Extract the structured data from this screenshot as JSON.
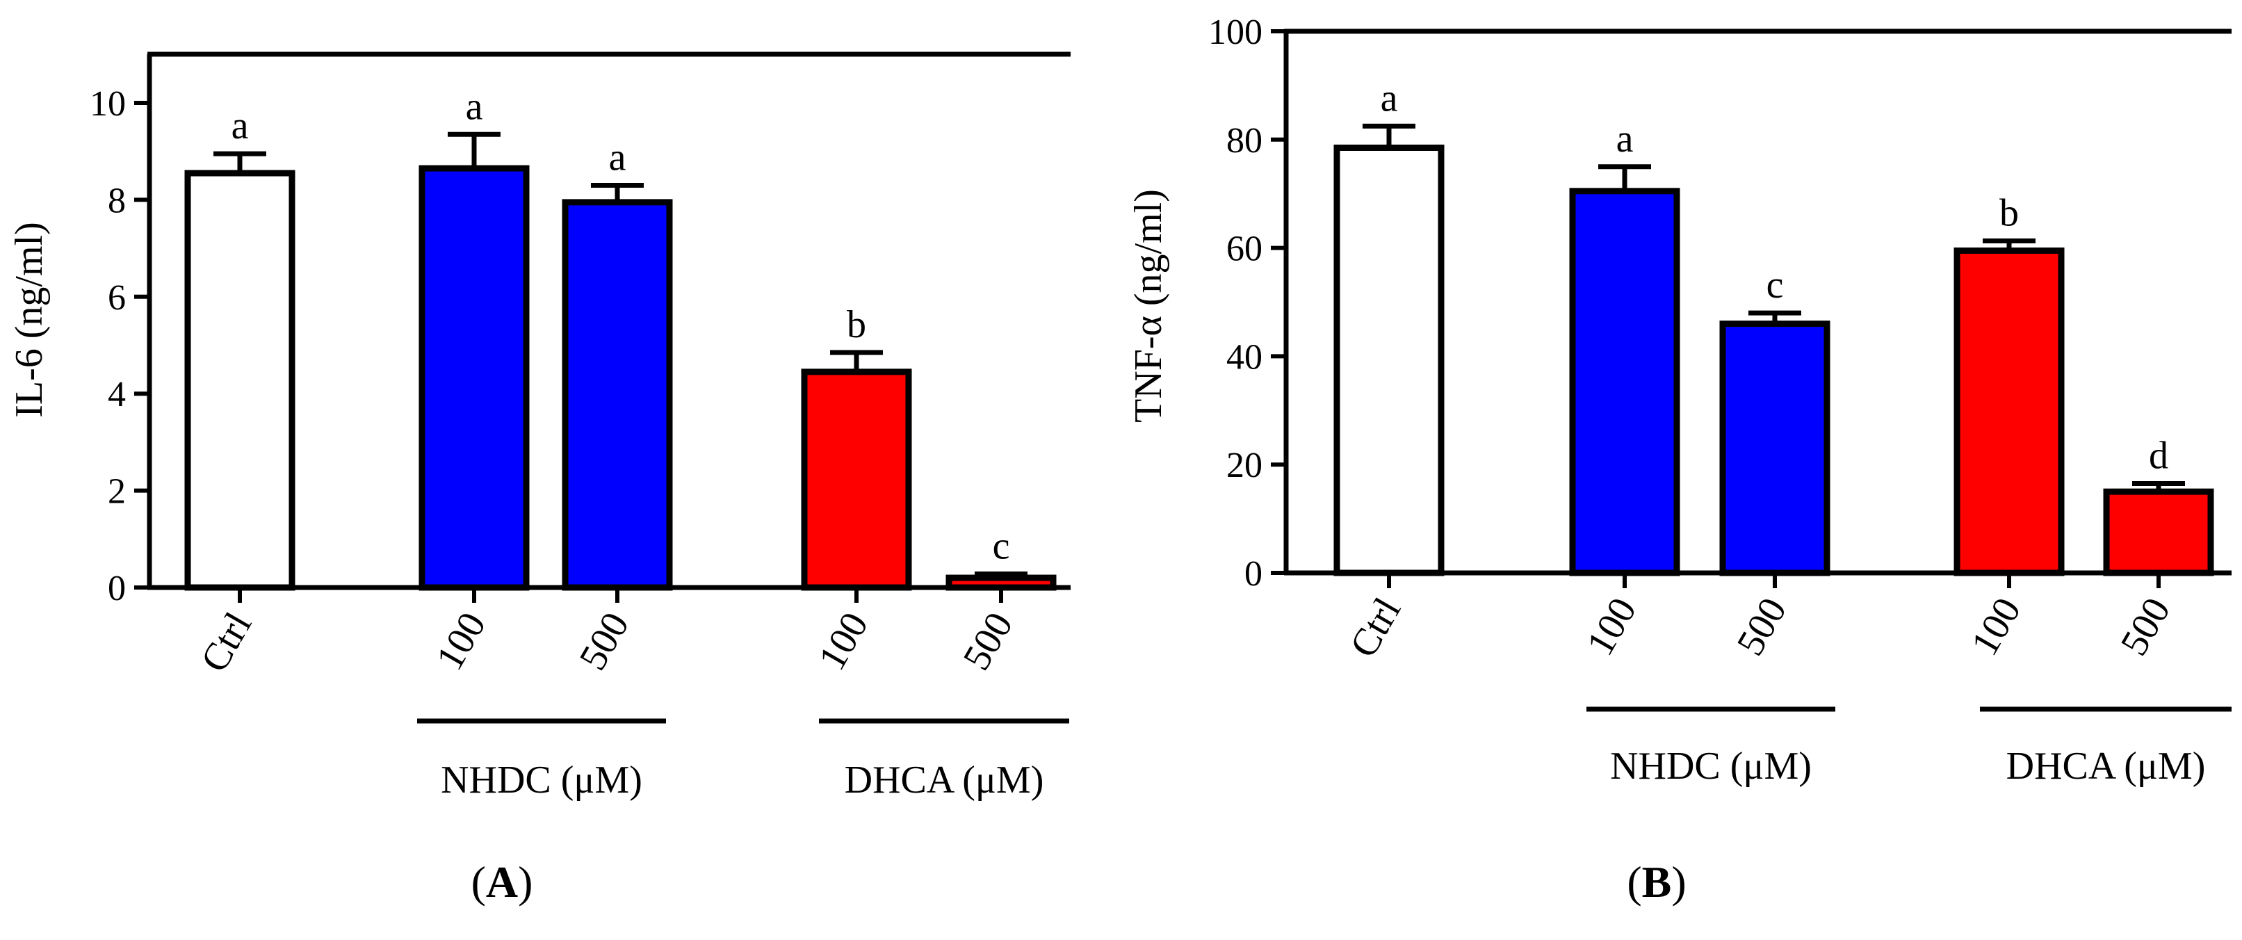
{
  "chart_data": [
    {
      "type": "bar",
      "panel_label": "A",
      "ylabel": "IL-6 (ng/ml)",
      "ylim": [
        0,
        11
      ],
      "yticks": [
        0,
        2,
        4,
        6,
        8,
        10
      ],
      "categories": [
        "Ctrl",
        "100",
        "500",
        "100",
        "500"
      ],
      "values": [
        8.55,
        8.65,
        7.95,
        4.45,
        0.2
      ],
      "errors": [
        0.4,
        0.7,
        0.35,
        0.4,
        0.08
      ],
      "colors": [
        "#ffffff",
        "#0000ff",
        "#0000ff",
        "#ff0000",
        "#ff0000"
      ],
      "significance": [
        "a",
        "a",
        "a",
        "b",
        "c"
      ],
      "groups": [
        {
          "label": "NHDC (μM)",
          "categories": [
            1,
            2
          ]
        },
        {
          "label": "DHCA (μM)",
          "categories": [
            3,
            4
          ]
        }
      ]
    },
    {
      "type": "bar",
      "panel_label": "B",
      "ylabel": "TNF-α (ng/ml)",
      "ylim": [
        0,
        100
      ],
      "yticks": [
        0,
        20,
        40,
        60,
        80,
        100
      ],
      "categories": [
        "Ctrl",
        "100",
        "500",
        "100",
        "500"
      ],
      "values": [
        78.5,
        70.5,
        46,
        59.5,
        15
      ],
      "errors": [
        4,
        4.5,
        2,
        1.8,
        1.5
      ],
      "colors": [
        "#ffffff",
        "#0000ff",
        "#0000ff",
        "#ff0000",
        "#ff0000"
      ],
      "significance": [
        "a",
        "a",
        "c",
        "b",
        "d"
      ],
      "groups": [
        {
          "label": "NHDC (μM)",
          "categories": [
            1,
            2
          ]
        },
        {
          "label": "DHCA (μM)",
          "categories": [
            3,
            4
          ]
        }
      ]
    }
  ]
}
